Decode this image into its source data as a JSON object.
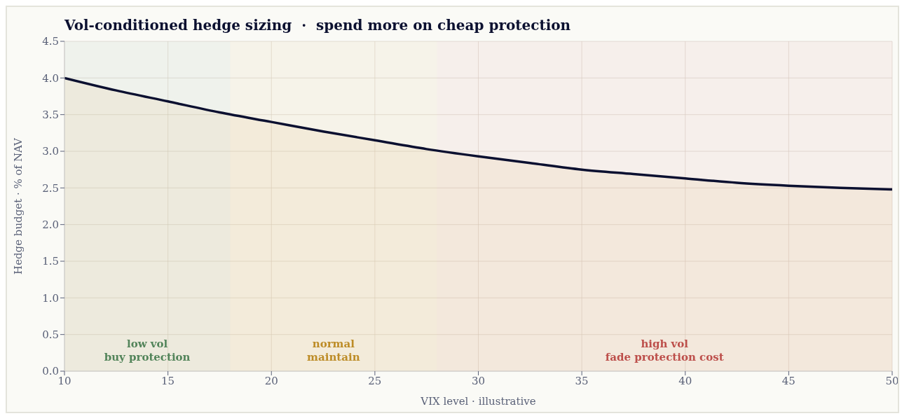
{
  "chart_data": {
    "type": "area",
    "title": "Vol-conditioned hedge sizing  ·  spend more on cheap protection",
    "xlabel": "VIX level  ·  illustrative",
    "ylabel": "Hedge budget  ·  % of NAV",
    "x": [
      10,
      12.5,
      15,
      17.5,
      20,
      22.5,
      25,
      27.5,
      30,
      32.5,
      35,
      37.5,
      40,
      42.5,
      45,
      47.5,
      50
    ],
    "series": [
      {
        "color": "#0b1030",
        "values": [
          4.0,
          3.83,
          3.68,
          3.53,
          3.4,
          3.27,
          3.15,
          3.03,
          2.93,
          2.84,
          2.75,
          2.69,
          2.63,
          2.57,
          2.53,
          2.5,
          2.48
        ]
      }
    ],
    "xlim": [
      10,
      50
    ],
    "xticks": [
      10,
      15,
      20,
      25,
      30,
      35,
      40,
      45,
      50
    ],
    "ylim": [
      0,
      4.5
    ],
    "yticks": [
      {
        "value": 0,
        "label": "0.0"
      },
      0.5,
      {
        "value": 1,
        "label": "1.0"
      },
      1.5,
      {
        "value": 2,
        "label": "2.0"
      },
      2.5,
      {
        "value": 3,
        "label": "3.0"
      },
      3.5,
      {
        "value": 4,
        "label": "4.0"
      },
      4.5
    ],
    "bands": [
      {
        "axis": "x",
        "from": 10,
        "to": 18,
        "label": "low vol\nbuy protection",
        "color": "#3e7d55"
      },
      {
        "axis": "x",
        "from": 18,
        "to": 28,
        "label": "normal\nmaintain",
        "color": "#b8861b"
      },
      {
        "axis": "x",
        "from": 28,
        "to": 50,
        "label": "high vol\nfade protection cost",
        "color": "#b84044"
      }
    ],
    "grid": true,
    "line_style": "solid"
  }
}
